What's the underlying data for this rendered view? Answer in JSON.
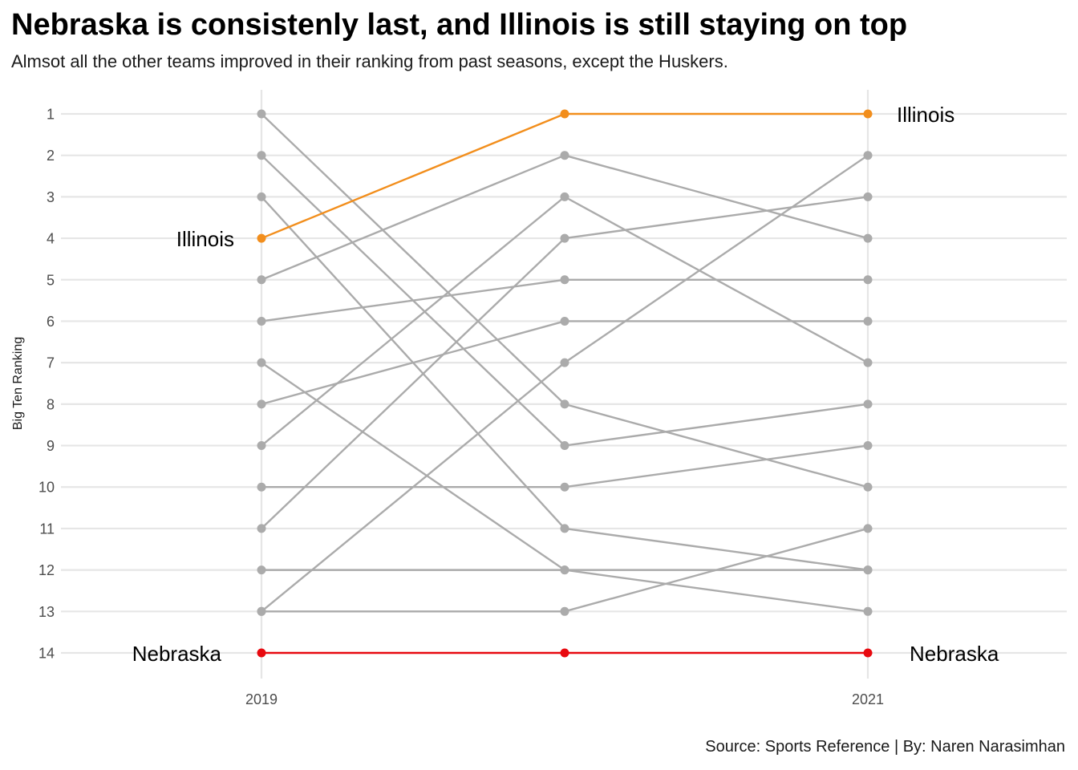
{
  "chart_data": {
    "type": "line",
    "title": "Nebraska is consistenly last, and Illinois is still staying on top",
    "subtitle": "Almsot all the other teams improved in their ranking from past seasons, except the Huskers.",
    "caption": "Source: Sports Reference | By: Naren Narasimhan",
    "ylabel": "Big Ten Ranking",
    "xlabel": "",
    "y_reversed": true,
    "ylim": [
      1,
      14
    ],
    "y_ticks": [
      "1",
      "2",
      "3",
      "4",
      "5",
      "6",
      "7",
      "8",
      "9",
      "10",
      "11",
      "12",
      "13",
      "14"
    ],
    "x": [
      2019,
      2020,
      2021
    ],
    "x_tick_labels": [
      "2019",
      "2021"
    ],
    "grid": true,
    "colors": {
      "highlight_top": "#F28E1C",
      "highlight_bottom": "#E8090F",
      "other": "#ABABAB",
      "grid": "#E6E6E6"
    },
    "series": [
      {
        "name": "Illinois",
        "highlight": "top",
        "values": [
          4,
          1,
          1
        ]
      },
      {
        "name": "Nebraska",
        "highlight": "bottom",
        "values": [
          14,
          14,
          14
        ]
      },
      {
        "values": [
          1,
          8,
          10
        ]
      },
      {
        "values": [
          2,
          9,
          8
        ]
      },
      {
        "values": [
          3,
          11,
          12
        ]
      },
      {
        "values": [
          5,
          2,
          4
        ]
      },
      {
        "values": [
          6,
          5,
          5
        ]
      },
      {
        "values": [
          7,
          12,
          13
        ]
      },
      {
        "values": [
          8,
          6,
          6
        ]
      },
      {
        "values": [
          9,
          3,
          7
        ]
      },
      {
        "values": [
          10,
          10,
          9
        ]
      },
      {
        "values": [
          11,
          4,
          3
        ]
      },
      {
        "values": [
          12,
          12,
          12
        ]
      },
      {
        "values": [
          13,
          13,
          11
        ]
      },
      {
        "values": [
          13,
          7,
          2
        ]
      }
    ],
    "labels": {
      "left": [
        {
          "text": "Illinois",
          "value": 4
        },
        {
          "text": "Nebraska",
          "value": 14
        }
      ],
      "right": [
        {
          "text": "Illinois",
          "value": 1
        },
        {
          "text": "Nebraska",
          "value": 14
        }
      ]
    }
  }
}
